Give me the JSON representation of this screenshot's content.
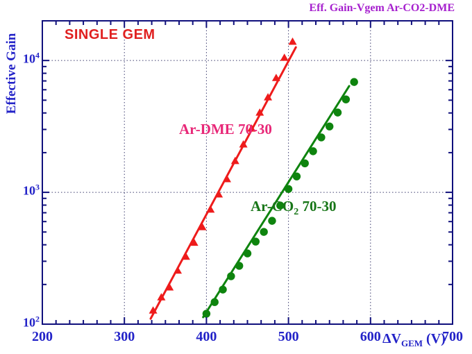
{
  "title": "Eff. Gain-Vgem Ar-CO2-DME",
  "annotations": {
    "detector": "SINGLE GEM",
    "series1_label": "Ar-DME 70-30",
    "series2_label": {
      "pre": "Ar-CO",
      "sub": "2",
      "post": " 70-30"
    }
  },
  "axes": {
    "ylabel": "Effective Gain",
    "xlabel": {
      "main": "ΔV",
      "sub": "GEM",
      "unit": " (V)"
    },
    "x_ticks": [
      200,
      300,
      400,
      500,
      600,
      700
    ],
    "y_tick_exponents": [
      2,
      3,
      4
    ]
  },
  "colors": {
    "axis_text_blue": "#2323c8",
    "frame_navy": "#10107c",
    "grid_dotted": "#3c3c6e",
    "title_purple": "#a620ce",
    "single_gem_red": "#e02020",
    "dme_pink": "#e82878",
    "co2_green_text": "#187618",
    "red_series": "#ee1b1b",
    "green_series": "#0e840e",
    "background": "#ffffff"
  },
  "chart_data": {
    "type": "scatter",
    "title": "Eff. Gain-Vgem Ar-CO2-DME",
    "xlabel": "Delta V_GEM (V)",
    "ylabel": "Effective Gain",
    "x_range": [
      200,
      700
    ],
    "y_range": [
      100,
      20000
    ],
    "y_scale": "log",
    "grid": {
      "x_at": [
        300,
        400,
        500,
        600
      ],
      "y_at": [
        1000,
        10000
      ]
    },
    "x_minor_subdivisions": 6,
    "series": [
      {
        "name": "Ar-DME 70-30",
        "marker": "triangle",
        "color": "#ee1b1b",
        "x": [
          335,
          345,
          355,
          365,
          375,
          385,
          395,
          405,
          415,
          425,
          435,
          445,
          455,
          465,
          475,
          485,
          495,
          505
        ],
        "y": [
          127,
          160,
          190,
          255,
          325,
          415,
          545,
          740,
          965,
          1260,
          1730,
          2310,
          3050,
          4030,
          5260,
          7380,
          10500,
          13900
        ],
        "fit_line": {
          "x": [
            332,
            509
          ],
          "y": [
            110,
            12600
          ]
        }
      },
      {
        "name": "Ar-CO2 70-30",
        "marker": "circle",
        "color": "#0e840e",
        "x": [
          400,
          410,
          420,
          430,
          440,
          450,
          460,
          470,
          480,
          490,
          500,
          510,
          520,
          530,
          540,
          550,
          560,
          570,
          580
        ],
        "y": [
          120,
          147,
          183,
          231,
          277,
          344,
          423,
          501,
          608,
          794,
          1060,
          1320,
          1660,
          2050,
          2610,
          3160,
          4030,
          5070,
          6870
        ],
        "fit_line": {
          "x": [
            396,
            574
          ],
          "y": [
            113,
            6400
          ]
        }
      }
    ]
  }
}
